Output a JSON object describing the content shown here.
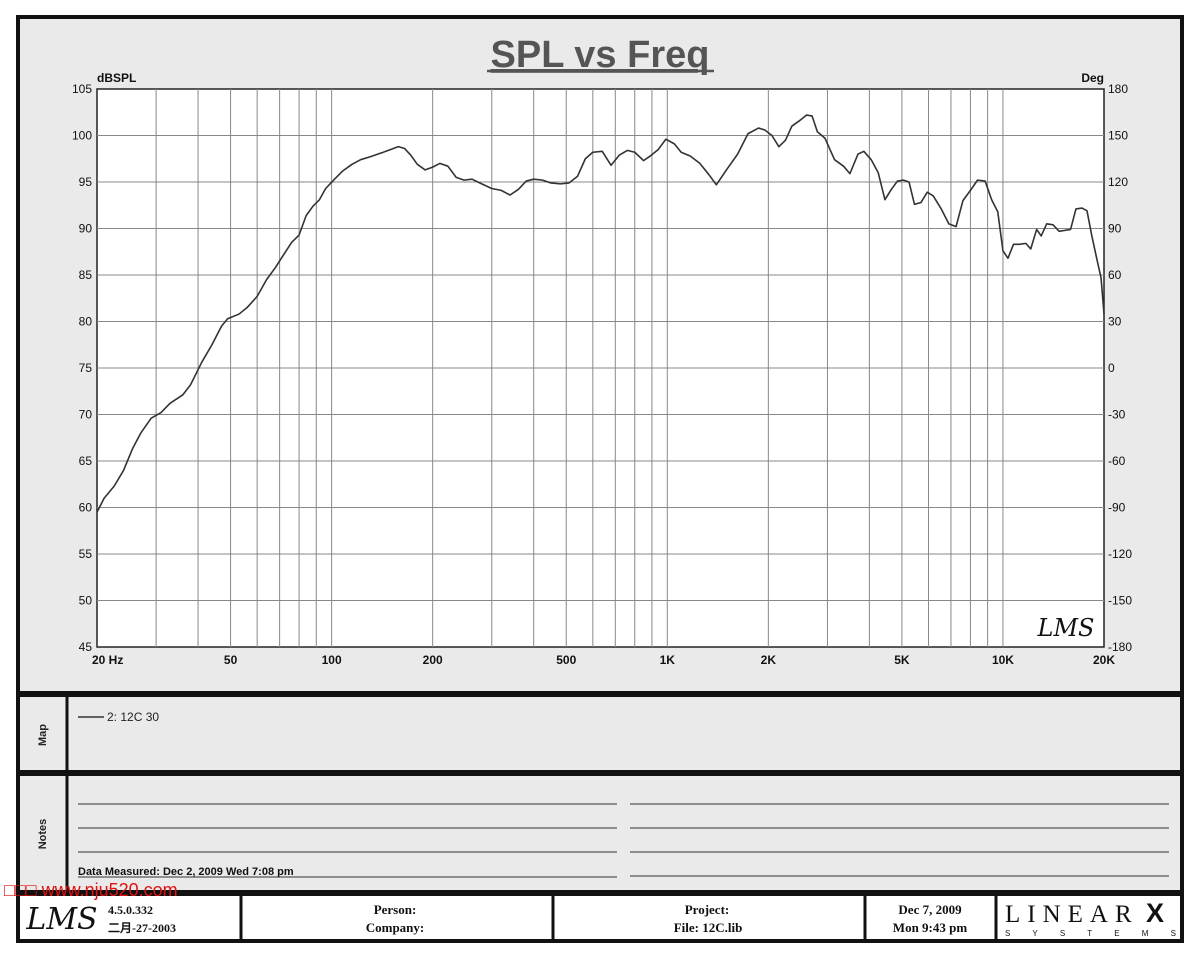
{
  "chart_data": {
    "type": "line",
    "title": "SPL vs Freq",
    "ylabel": "dBSPL",
    "y2label": "Deg",
    "xscale": "log",
    "xlim": [
      20,
      20000
    ],
    "ylim": [
      45,
      105
    ],
    "y2lim": [
      -180,
      180
    ],
    "grid": true,
    "x_tick_labels": [
      {
        "v": 20,
        "label": "20  Hz"
      },
      {
        "v": 50,
        "label": "50"
      },
      {
        "v": 100,
        "label": "100"
      },
      {
        "v": 200,
        "label": "200"
      },
      {
        "v": 500,
        "label": "500"
      },
      {
        "v": 1000,
        "label": "1K"
      },
      {
        "v": 2000,
        "label": "2K"
      },
      {
        "v": 5000,
        "label": "5K"
      },
      {
        "v": 10000,
        "label": "10K"
      },
      {
        "v": 20000,
        "label": "20K"
      }
    ],
    "y_ticks": [
      105,
      100,
      95,
      90,
      85,
      80,
      75,
      70,
      65,
      60,
      55,
      50,
      45
    ],
    "y2_ticks": [
      180,
      150,
      120,
      90,
      60,
      30,
      0,
      -30,
      -60,
      -90,
      -120,
      -150,
      -180
    ],
    "series": [
      {
        "name": "2: 12C  30",
        "color": "#333333",
        "points": [
          [
            20,
            59.5
          ],
          [
            21,
            61
          ],
          [
            22.5,
            62.3
          ],
          [
            24,
            64
          ],
          [
            25.5,
            66.3
          ],
          [
            27,
            68
          ],
          [
            29,
            69.6
          ],
          [
            31,
            70.2
          ],
          [
            33,
            71.2
          ],
          [
            36,
            72.1
          ],
          [
            38,
            73.2
          ],
          [
            41,
            75.6
          ],
          [
            44,
            77.5
          ],
          [
            47,
            79.5
          ],
          [
            49,
            80.3
          ],
          [
            53,
            80.8
          ],
          [
            56,
            81.5
          ],
          [
            60,
            82.7
          ],
          [
            64,
            84.5
          ],
          [
            68,
            85.8
          ],
          [
            72,
            87.2
          ],
          [
            76,
            88.5
          ],
          [
            80,
            89.3
          ],
          [
            84,
            91.4
          ],
          [
            88,
            92.4
          ],
          [
            92,
            93.1
          ],
          [
            96,
            94.3
          ],
          [
            102,
            95.3
          ],
          [
            108,
            96.2
          ],
          [
            115,
            96.9
          ],
          [
            122,
            97.4
          ],
          [
            130,
            97.7
          ],
          [
            140,
            98.1
          ],
          [
            150,
            98.5
          ],
          [
            158,
            98.8
          ],
          [
            165,
            98.6
          ],
          [
            172,
            97.9
          ],
          [
            180,
            96.9
          ],
          [
            190,
            96.3
          ],
          [
            200,
            96.6
          ],
          [
            210,
            97
          ],
          [
            222,
            96.7
          ],
          [
            235,
            95.5
          ],
          [
            248,
            95.2
          ],
          [
            262,
            95.3
          ],
          [
            280,
            94.8
          ],
          [
            300,
            94.3
          ],
          [
            320,
            94.1
          ],
          [
            340,
            93.6
          ],
          [
            360,
            94.2
          ],
          [
            380,
            95.1
          ],
          [
            400,
            95.3
          ],
          [
            425,
            95.2
          ],
          [
            450,
            94.9
          ],
          [
            480,
            94.8
          ],
          [
            510,
            94.9
          ],
          [
            540,
            95.6
          ],
          [
            570,
            97.5
          ],
          [
            600,
            98.2
          ],
          [
            640,
            98.3
          ],
          [
            680,
            96.8
          ],
          [
            720,
            97.9
          ],
          [
            760,
            98.4
          ],
          [
            800,
            98.2
          ],
          [
            850,
            97.3
          ],
          [
            890,
            97.8
          ],
          [
            940,
            98.5
          ],
          [
            990,
            99.6
          ],
          [
            1050,
            99.1
          ],
          [
            1100,
            98.2
          ],
          [
            1170,
            97.8
          ],
          [
            1250,
            97
          ],
          [
            1330,
            95.8
          ],
          [
            1400,
            94.7
          ],
          [
            1500,
            96.3
          ],
          [
            1620,
            98
          ],
          [
            1740,
            100.2
          ],
          [
            1870,
            100.8
          ],
          [
            1950,
            100.6
          ],
          [
            2050,
            100
          ],
          [
            2150,
            98.8
          ],
          [
            2250,
            99.5
          ],
          [
            2350,
            101
          ],
          [
            2500,
            101.7
          ],
          [
            2600,
            102.2
          ],
          [
            2700,
            102.1
          ],
          [
            2800,
            100.4
          ],
          [
            2950,
            99.7
          ],
          [
            3150,
            97.4
          ],
          [
            3350,
            96.7
          ],
          [
            3500,
            95.9
          ],
          [
            3700,
            98
          ],
          [
            3850,
            98.3
          ],
          [
            4050,
            97.4
          ],
          [
            4250,
            96
          ],
          [
            4450,
            93.1
          ],
          [
            4650,
            94.2
          ],
          [
            4850,
            95.1
          ],
          [
            5050,
            95.2
          ],
          [
            5250,
            95
          ],
          [
            5450,
            92.6
          ],
          [
            5700,
            92.8
          ],
          [
            5950,
            93.9
          ],
          [
            6200,
            93.5
          ],
          [
            6550,
            92.1
          ],
          [
            6900,
            90.5
          ],
          [
            7250,
            90.2
          ],
          [
            7600,
            93
          ],
          [
            8000,
            94.1
          ],
          [
            8400,
            95.2
          ],
          [
            8850,
            95.1
          ],
          [
            9250,
            93.1
          ],
          [
            9650,
            91.8
          ],
          [
            10000,
            87.6
          ],
          [
            10350,
            86.8
          ],
          [
            10750,
            88.3
          ],
          [
            11200,
            88.3
          ],
          [
            11700,
            88.4
          ],
          [
            12100,
            87.8
          ],
          [
            12600,
            89.9
          ],
          [
            13000,
            89.2
          ],
          [
            13500,
            90.5
          ],
          [
            14100,
            90.4
          ],
          [
            14700,
            89.7
          ],
          [
            15300,
            89.8
          ],
          [
            15900,
            89.9
          ],
          [
            16500,
            92.1
          ],
          [
            17200,
            92.2
          ],
          [
            17800,
            91.9
          ],
          [
            18400,
            89.2
          ],
          [
            19100,
            86.5
          ],
          [
            19600,
            84.7
          ],
          [
            20000,
            80.8
          ]
        ]
      }
    ]
  },
  "legend": {
    "map_label": "Map",
    "entry": "2: 12C  30"
  },
  "notes": {
    "label": "Notes",
    "data_measured": "Data Measured: Dec  2, 2009  Wed  7:08 pm"
  },
  "watermark": "□□□ www.nju520.com",
  "footer": {
    "version": "4.5.0.332",
    "version_date": "二月-27-2003",
    "person_label": "Person:",
    "company_label": "Company:",
    "project_label": "Project:",
    "file_label": "File: 12C.lib",
    "date": "Dec  7, 2009",
    "time": "Mon  9:43 pm",
    "brand_top": "LINEAR",
    "brand_x": "X",
    "brand_bottom": "S Y S T E M S",
    "lms_logo": "LMS"
  }
}
